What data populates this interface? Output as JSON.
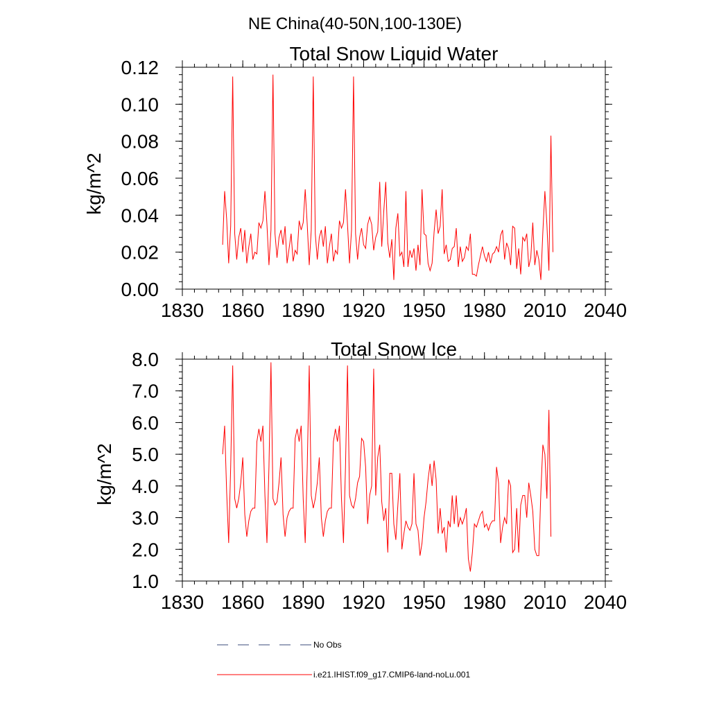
{
  "main_title": "NE China(40-50N,100-130E)",
  "legend": {
    "entries": [
      {
        "label": "No Obs",
        "color": "#3a4a7a",
        "style": "dashed"
      },
      {
        "label": "i.e21.IHIST.f09_g17.CMIP6-land-noLu.001",
        "color": "#ff0000",
        "style": "solid"
      }
    ]
  },
  "chart_data": [
    {
      "type": "line",
      "title": "Total Snow Liquid Water",
      "xlabel": "",
      "ylabel": "kg/m^2",
      "xlim": [
        1830,
        2040
      ],
      "ylim": [
        0,
        0.12
      ],
      "x_ticks": [
        "1830",
        "1860",
        "1890",
        "1920",
        "1950",
        "1980",
        "2010",
        "2040"
      ],
      "y_ticks": [
        "0.00",
        "0.02",
        "0.04",
        "0.06",
        "0.08",
        "0.10",
        "0.12"
      ],
      "x_start": 1850,
      "color": "#ff0000",
      "values": [
        0.024,
        0.053,
        0.038,
        0.014,
        0.034,
        0.115,
        0.03,
        0.016,
        0.028,
        0.033,
        0.02,
        0.032,
        0.014,
        0.023,
        0.03,
        0.016,
        0.02,
        0.019,
        0.036,
        0.033,
        0.037,
        0.053,
        0.035,
        0.013,
        0.032,
        0.116,
        0.03,
        0.017,
        0.028,
        0.032,
        0.024,
        0.034,
        0.014,
        0.022,
        0.03,
        0.015,
        0.021,
        0.019,
        0.037,
        0.032,
        0.036,
        0.054,
        0.035,
        0.013,
        0.032,
        0.115,
        0.03,
        0.016,
        0.028,
        0.032,
        0.023,
        0.034,
        0.014,
        0.023,
        0.03,
        0.015,
        0.021,
        0.019,
        0.037,
        0.033,
        0.036,
        0.054,
        0.035,
        0.014,
        0.032,
        0.115,
        0.03,
        0.016,
        0.028,
        0.033,
        0.024,
        0.022,
        0.035,
        0.039,
        0.035,
        0.021,
        0.028,
        0.031,
        0.058,
        0.023,
        0.042,
        0.058,
        0.025,
        0.017,
        0.027,
        0.005,
        0.033,
        0.041,
        0.018,
        0.02,
        0.012,
        0.053,
        0.012,
        0.021,
        0.017,
        0.022,
        0.01,
        0.024,
        0.013,
        0.054,
        0.03,
        0.029,
        0.014,
        0.01,
        0.014,
        0.031,
        0.043,
        0.03,
        0.034,
        0.054,
        0.019,
        0.024,
        0.015,
        0.016,
        0.022,
        0.023,
        0.033,
        0.012,
        0.023,
        0.015,
        0.017,
        0.023,
        0.021,
        0.03,
        0.008,
        0.008,
        0.007,
        0.013,
        0.018,
        0.023,
        0.018,
        0.015,
        0.02,
        0.014,
        0.019,
        0.02,
        0.023,
        0.02,
        0.029,
        0.032,
        0.016,
        0.025,
        0.022,
        0.013,
        0.034,
        0.033,
        0.011,
        0.022,
        0.008,
        0.028,
        0.026,
        0.03,
        0.012,
        0.017,
        0.036,
        0.013,
        0.021,
        0.016,
        0.005,
        0.031,
        0.053,
        0.035,
        0.01,
        0.083,
        0.02
      ]
    },
    {
      "type": "line",
      "title": "Total Snow Ice",
      "xlabel": "",
      "ylabel": "kg/m^2",
      "xlim": [
        1830,
        2040
      ],
      "ylim": [
        1.0,
        8.0
      ],
      "x_ticks": [
        "1830",
        "1860",
        "1890",
        "1920",
        "1950",
        "1980",
        "2010",
        "2040"
      ],
      "y_ticks": [
        "1.0",
        "2.0",
        "3.0",
        "4.0",
        "5.0",
        "6.0",
        "7.0",
        "8.0"
      ],
      "x_start": 1850,
      "color": "#ff0000",
      "values": [
        5.0,
        5.9,
        3.8,
        2.2,
        4.6,
        7.8,
        3.6,
        3.3,
        3.6,
        4.1,
        4.9,
        3.1,
        2.4,
        2.9,
        3.2,
        3.3,
        3.3,
        5.4,
        5.8,
        5.4,
        5.9,
        3.7,
        2.2,
        4.6,
        7.9,
        3.6,
        3.4,
        3.5,
        4.1,
        4.9,
        3.1,
        2.4,
        3.0,
        3.2,
        3.3,
        3.3,
        5.5,
        5.8,
        5.4,
        5.9,
        3.6,
        2.2,
        4.6,
        7.8,
        3.7,
        3.3,
        3.6,
        4.1,
        4.9,
        3.0,
        2.4,
        2.9,
        3.2,
        3.3,
        3.3,
        5.4,
        5.8,
        5.4,
        5.9,
        3.6,
        2.2,
        4.6,
        7.8,
        3.7,
        3.4,
        3.3,
        3.6,
        4.1,
        4.3,
        5.5,
        5.4,
        4.6,
        2.8,
        3.7,
        4.0,
        7.7,
        3.7,
        4.9,
        5.3,
        3.5,
        2.9,
        3.3,
        1.9,
        4.4,
        4.4,
        2.8,
        2.3,
        3.4,
        4.4,
        2.0,
        2.5,
        2.9,
        2.7,
        2.6,
        2.8,
        4.4,
        2.8,
        2.6,
        1.8,
        2.2,
        3.0,
        3.5,
        4.2,
        4.7,
        4.0,
        4.8,
        4.2,
        2.5,
        3.3,
        2.5,
        2.7,
        1.9,
        2.9,
        2.7,
        3.7,
        2.8,
        3.7,
        2.7,
        3.0,
        2.8,
        3.0,
        3.3,
        1.7,
        1.3,
        1.9,
        2.8,
        2.7,
        2.9,
        3.1,
        3.2,
        2.7,
        2.8,
        2.6,
        2.8,
        2.9,
        2.9,
        4.6,
        4.1,
        2.2,
        2.7,
        3.0,
        2.8,
        4.2,
        4.0,
        1.9,
        2.0,
        3.3,
        1.9,
        3.4,
        3.7,
        3.7,
        3.0,
        4.1,
        3.7,
        3.2,
        2.0,
        1.8,
        1.8,
        3.8,
        5.3,
        5.0,
        3.6,
        6.4,
        2.4
      ]
    }
  ]
}
